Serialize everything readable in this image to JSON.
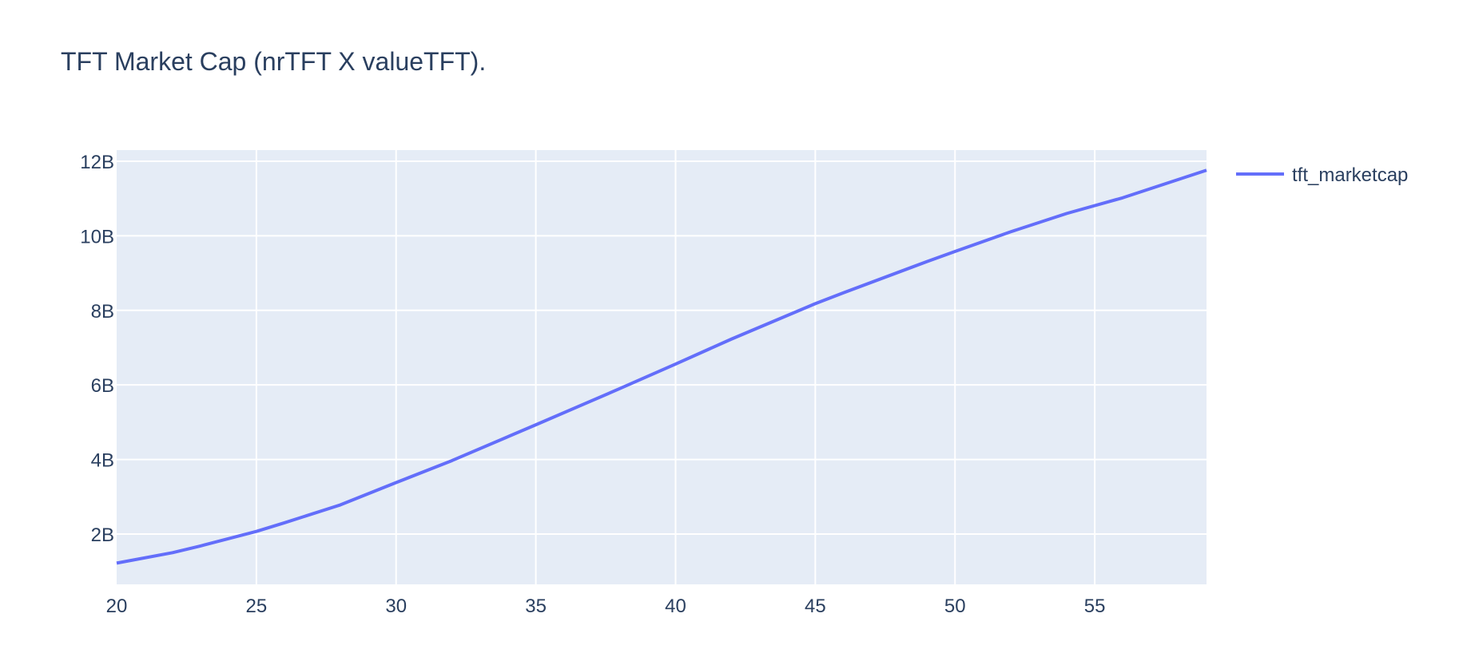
{
  "chart_data": {
    "type": "line",
    "title": "TFT Market Cap (nrTFT X valueTFT).",
    "xlabel": "",
    "ylabel": "",
    "xlim": [
      20,
      59
    ],
    "ylim": [
      0.65,
      12.3
    ],
    "y_unit_suffix": "B",
    "x_ticks": [
      20,
      25,
      30,
      35,
      40,
      45,
      50,
      55
    ],
    "y_ticks": [
      2,
      4,
      6,
      8,
      10,
      12
    ],
    "x_tick_labels": [
      "20",
      "25",
      "30",
      "35",
      "40",
      "45",
      "50",
      "55"
    ],
    "y_tick_labels": [
      "2B",
      "4B",
      "6B",
      "8B",
      "10B",
      "12B"
    ],
    "grid": true,
    "legend_position": "top-right",
    "colors": {
      "plot_bg": "#e5ecf6",
      "line": "#636efa",
      "text": "#2a3f5f"
    },
    "series": [
      {
        "name": "tft_marketcap",
        "x": [
          20,
          22,
          23,
          25,
          26,
          28,
          30,
          32,
          35,
          38,
          40,
          42,
          45,
          46,
          49,
          50,
          52,
          54,
          56,
          59
        ],
        "values": [
          1.22,
          1.5,
          1.68,
          2.07,
          2.3,
          2.78,
          3.38,
          3.97,
          4.93,
          5.9,
          6.56,
          7.23,
          8.18,
          8.47,
          9.31,
          9.58,
          10.11,
          10.6,
          11.02,
          11.76
        ]
      }
    ]
  }
}
